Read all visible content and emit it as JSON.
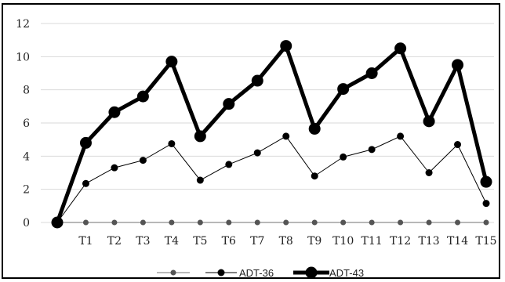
{
  "chart_data": {
    "type": "line",
    "title": "",
    "xlabel": "",
    "ylabel": "",
    "ylim": [
      0,
      12
    ],
    "yticks": [
      0,
      2,
      4,
      6,
      8,
      10,
      12
    ],
    "grid": true,
    "legend_position": "bottom",
    "categories": [
      "",
      "T1",
      "T2",
      "T3",
      "T4",
      "T5",
      "T6",
      "T7",
      "T8",
      "T9",
      "T10",
      "T11",
      "T12",
      "T13",
      "T14",
      "T15"
    ],
    "series": [
      {
        "name": "",
        "color": "#555555",
        "line_color": "#b8b8b8",
        "values": [
          0,
          0,
          0,
          0,
          0,
          0,
          0,
          0,
          0,
          0,
          0,
          0,
          0,
          0,
          0,
          0
        ]
      },
      {
        "name": "ADT-36",
        "color": "#000000",
        "values": [
          0,
          2.35,
          3.3,
          3.75,
          4.75,
          2.55,
          3.5,
          4.2,
          5.2,
          2.8,
          3.95,
          4.4,
          5.2,
          3.0,
          4.7,
          1.15
        ]
      },
      {
        "name": "ADT-43",
        "color": "#000000",
        "values": [
          0,
          4.8,
          6.65,
          7.6,
          9.7,
          5.2,
          7.15,
          8.55,
          10.65,
          5.65,
          8.05,
          9.0,
          10.5,
          6.1,
          9.5,
          2.45
        ]
      }
    ]
  }
}
